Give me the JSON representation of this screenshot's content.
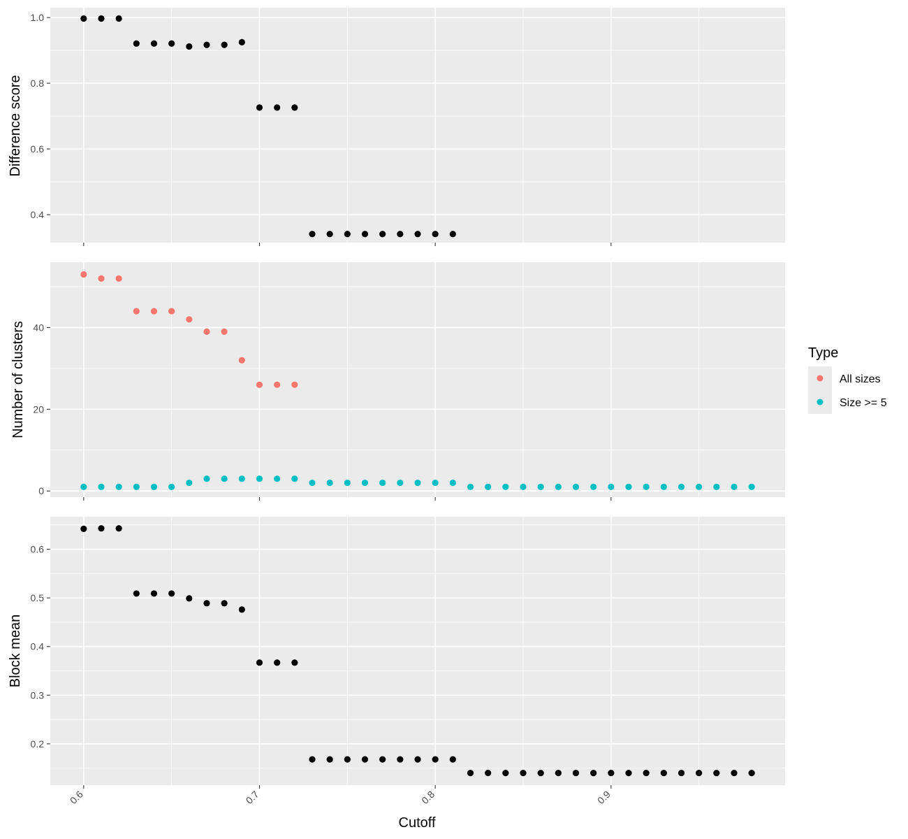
{
  "chart_data": [
    {
      "type": "scatter",
      "ylabel": "Difference score",
      "xlim": [
        0.581,
        0.999
      ],
      "ylim": [
        0.315,
        1.03
      ],
      "x_ticks": [
        "0.6",
        "0.7",
        "0.8",
        "0.9"
      ],
      "y_ticks": [
        "0.4",
        "0.6",
        "0.8",
        "1.0"
      ],
      "series": [
        {
          "color": "#000000",
          "x": [
            0.6,
            0.61,
            0.62,
            0.63,
            0.64,
            0.65,
            0.66,
            0.67,
            0.68,
            0.69,
            0.7,
            0.71,
            0.72,
            0.73,
            0.74,
            0.75,
            0.76,
            0.77,
            0.78,
            0.79,
            0.8,
            0.81
          ],
          "y": [
            0.997,
            0.997,
            0.997,
            0.921,
            0.921,
            0.921,
            0.912,
            0.917,
            0.917,
            0.925,
            0.726,
            0.726,
            0.726,
            0.341,
            0.341,
            0.341,
            0.341,
            0.341,
            0.341,
            0.341,
            0.341,
            0.341
          ]
        }
      ]
    },
    {
      "type": "scatter",
      "ylabel": "Number of clusters",
      "xlim": [
        0.581,
        0.999
      ],
      "ylim": [
        -1.5,
        56
      ],
      "x_ticks": [
        "0.6",
        "0.7",
        "0.8",
        "0.9"
      ],
      "y_ticks": [
        "0",
        "20",
        "40"
      ],
      "series": [
        {
          "name": "All sizes",
          "color": "#F8766D",
          "x": [
            0.6,
            0.61,
            0.62,
            0.63,
            0.64,
            0.65,
            0.66,
            0.67,
            0.68,
            0.69,
            0.7,
            0.71,
            0.72
          ],
          "y": [
            53,
            52,
            52,
            44,
            44,
            44,
            42,
            39,
            39,
            32,
            26,
            26,
            26
          ]
        },
        {
          "name": "Size >= 5",
          "color": "#00BFC4",
          "x": [
            0.6,
            0.61,
            0.62,
            0.63,
            0.64,
            0.65,
            0.66,
            0.67,
            0.68,
            0.69,
            0.7,
            0.71,
            0.72,
            0.73,
            0.74,
            0.75,
            0.76,
            0.77,
            0.78,
            0.79,
            0.8,
            0.81,
            0.82,
            0.83,
            0.84,
            0.85,
            0.86,
            0.87,
            0.88,
            0.89,
            0.9,
            0.91,
            0.92,
            0.93,
            0.94,
            0.95,
            0.96,
            0.97,
            0.98
          ],
          "y": [
            1,
            1,
            1,
            1,
            1,
            1,
            2,
            3,
            3,
            3,
            3,
            3,
            3,
            2,
            2,
            2,
            2,
            2,
            2,
            2,
            2,
            2,
            1,
            1,
            1,
            1,
            1,
            1,
            1,
            1,
            1,
            1,
            1,
            1,
            1,
            1,
            1,
            1,
            1
          ]
        }
      ]
    },
    {
      "type": "scatter",
      "ylabel": "Block mean",
      "xlabel": "Cutoff",
      "xlim": [
        0.581,
        0.999
      ],
      "ylim": [
        0.115,
        0.667
      ],
      "x_ticks": [
        "0.6",
        "0.7",
        "0.8",
        "0.9"
      ],
      "y_ticks": [
        "0.2",
        "0.3",
        "0.4",
        "0.5",
        "0.6"
      ],
      "series": [
        {
          "color": "#000000",
          "x": [
            0.6,
            0.61,
            0.62,
            0.63,
            0.64,
            0.65,
            0.66,
            0.67,
            0.68,
            0.69,
            0.7,
            0.71,
            0.72,
            0.73,
            0.74,
            0.75,
            0.76,
            0.77,
            0.78,
            0.79,
            0.8,
            0.81,
            0.82,
            0.83,
            0.84,
            0.85,
            0.86,
            0.87,
            0.88,
            0.89,
            0.9,
            0.91,
            0.92,
            0.93,
            0.94,
            0.95,
            0.96,
            0.97,
            0.98
          ],
          "y": [
            0.642,
            0.643,
            0.643,
            0.509,
            0.509,
            0.509,
            0.499,
            0.489,
            0.489,
            0.476,
            0.367,
            0.367,
            0.367,
            0.168,
            0.168,
            0.168,
            0.168,
            0.168,
            0.168,
            0.168,
            0.168,
            0.168,
            0.14,
            0.14,
            0.14,
            0.14,
            0.14,
            0.14,
            0.14,
            0.14,
            0.14,
            0.14,
            0.14,
            0.14,
            0.14,
            0.14,
            0.14,
            0.14,
            0.14
          ]
        }
      ]
    }
  ],
  "legend": {
    "title": "Type",
    "items": [
      {
        "label": "All sizes",
        "color": "#F8766D"
      },
      {
        "label": "Size >= 5",
        "color": "#00BFC4"
      }
    ]
  }
}
